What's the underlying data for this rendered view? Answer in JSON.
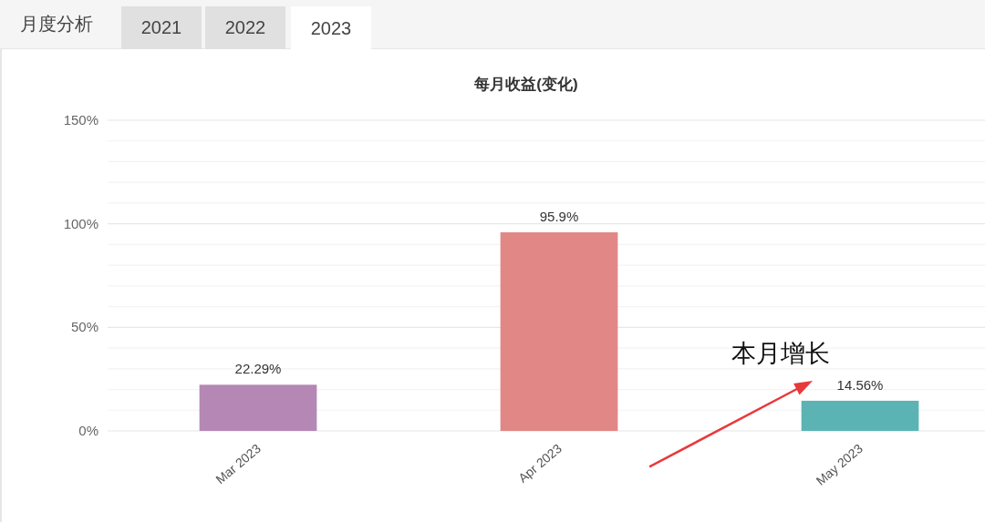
{
  "chart_data": [
    {
      "type": "other",
      "annotations": [
        "月度分析",
        "2021",
        "2022",
        "2023"
      ]
    },
    {
      "type": "bar",
      "title": "每月收益(变化)",
      "categories": [
        "Mar 2023",
        "Apr 2023",
        "May 2023"
      ],
      "values": [
        22.29,
        95.9,
        14.56
      ],
      "colors": [
        "#b587b4",
        "#e18786",
        "#5bb4b3"
      ],
      "value_labels": [
        "22.29%",
        "95.9%",
        "14.56%"
      ],
      "ylim": [
        0,
        150
      ],
      "yticks": [
        {
          "value": 0,
          "label": "0%"
        },
        {
          "value": 10,
          "label": null
        },
        {
          "value": 20,
          "label": null
        },
        {
          "value": 30,
          "label": null
        },
        {
          "value": 40,
          "label": null
        },
        {
          "value": 50,
          "label": "50%"
        },
        {
          "value": 60,
          "label": null
        },
        {
          "value": 70,
          "label": null
        },
        {
          "value": 80,
          "label": null
        },
        {
          "value": 90,
          "label": null
        },
        {
          "value": 100,
          "label": "100%"
        },
        {
          "value": 110,
          "label": null
        },
        {
          "value": 120,
          "label": null
        },
        {
          "value": 130,
          "label": null
        },
        {
          "value": 140,
          "label": null
        },
        {
          "value": 150,
          "label": "150%"
        }
      ],
      "grid": "y",
      "annotations": [
        {
          "text": "本月增长",
          "x": "May 2023",
          "y": 14.56
        }
      ]
    }
  ]
}
